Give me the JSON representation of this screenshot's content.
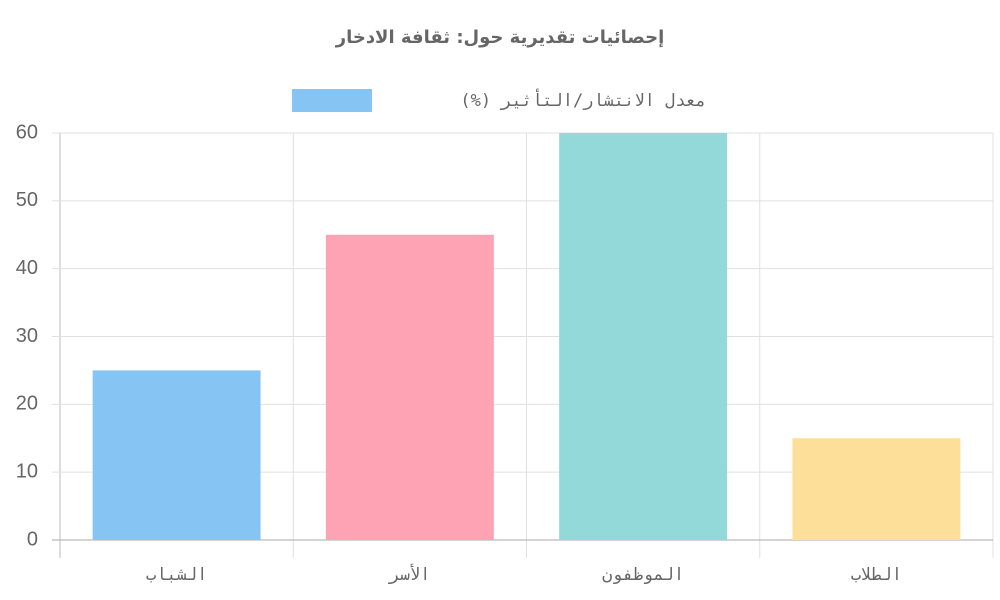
{
  "chart_data": {
    "type": "bar",
    "title": "إحصائيات تقديرية حول: ثقافة الادخار",
    "categories": [
      "الشباب",
      "الأسر",
      "الموظفون",
      "الطلاب"
    ],
    "series": [
      {
        "name": "معدل الانتشار/التأثير (%)",
        "colors": [
          "#85c4f3",
          "#fea3b4",
          "#94d9d9",
          "#fedf99"
        ],
        "values": [
          25,
          45,
          60,
          15
        ]
      }
    ],
    "ylim": [
      0,
      60
    ],
    "yticks": [
      0,
      10,
      20,
      30,
      40,
      50,
      60
    ],
    "grid": true,
    "legend": "top"
  }
}
